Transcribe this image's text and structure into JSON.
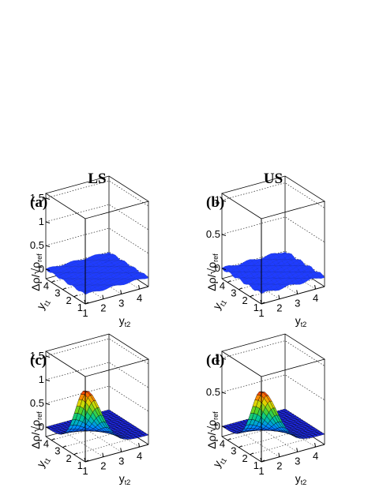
{
  "column_headers": [
    "LS",
    "US"
  ],
  "chart_data": [
    {
      "type": "surface3d",
      "panel_label": "(a)",
      "column": "LS",
      "x_axis": {
        "label": "y",
        "subscript": "t1",
        "range": [
          1,
          4.5
        ],
        "ticks": [
          "1",
          "2",
          "3",
          "4"
        ]
      },
      "y_axis": {
        "label": "y",
        "subscript": "t2",
        "range": [
          1,
          4.5
        ],
        "ticks": [
          "1",
          "2",
          "3",
          "4"
        ]
      },
      "z_axis": {
        "label": "Δρ/√ρ",
        "subscript": "ref",
        "range": [
          -0.2,
          1.6
        ],
        "ticks": [
          "0",
          "0.5",
          "1",
          "1.5"
        ]
      },
      "surface": {
        "shape": "flat",
        "peak_value": 0.0,
        "peak_at": [
          1.0,
          1.0
        ],
        "color": "#1f3cff"
      }
    },
    {
      "type": "surface3d",
      "panel_label": "(b)",
      "column": "US",
      "x_axis": {
        "label": "y",
        "subscript": "t1",
        "range": [
          1,
          4.5
        ],
        "ticks": [
          "1",
          "2",
          "3",
          "4"
        ]
      },
      "y_axis": {
        "label": "y",
        "subscript": "t2",
        "range": [
          1,
          4.5
        ],
        "ticks": [
          "1",
          "2",
          "3",
          "4"
        ]
      },
      "z_axis": {
        "label": "Δρ/√ρ",
        "subscript": "ref",
        "range": [
          -0.15,
          1.1
        ],
        "ticks": [
          "0",
          "0.5",
          "1"
        ]
      },
      "surface": {
        "shape": "flat",
        "peak_value": 0.0,
        "peak_at": [
          1.0,
          1.0
        ],
        "color": "#1f3cff"
      }
    },
    {
      "type": "surface3d",
      "panel_label": "(c)",
      "column": "LS",
      "x_axis": {
        "label": "y",
        "subscript": "t1",
        "range": [
          1,
          4.5
        ],
        "ticks": [
          "1",
          "2",
          "3",
          "4"
        ]
      },
      "y_axis": {
        "label": "y",
        "subscript": "t2",
        "range": [
          1,
          4.5
        ],
        "ticks": [
          "1",
          "2",
          "3",
          "4"
        ]
      },
      "z_axis": {
        "label": "Δρ/√ρ",
        "subscript": "ref",
        "range": [
          -0.2,
          1.6
        ],
        "ticks": [
          "0",
          "0.5",
          "1",
          "1.5"
        ]
      },
      "surface": {
        "shape": "peak",
        "peak_value": 1.3,
        "peak_at": [
          1.0,
          1.0
        ],
        "color_scale": "rainbow"
      }
    },
    {
      "type": "surface3d",
      "panel_label": "(d)",
      "column": "US",
      "x_axis": {
        "label": "y",
        "subscript": "t1",
        "range": [
          1,
          4.5
        ],
        "ticks": [
          "1",
          "2",
          "3",
          "4"
        ]
      },
      "y_axis": {
        "label": "y",
        "subscript": "t2",
        "range": [
          1,
          4.5
        ],
        "ticks": [
          "1",
          "2",
          "3",
          "4"
        ]
      },
      "z_axis": {
        "label": "Δρ/√ρ",
        "subscript": "ref",
        "range": [
          -0.15,
          1.1
        ],
        "ticks": [
          "0",
          "0.5",
          "1"
        ]
      },
      "surface": {
        "shape": "peak",
        "peak_value": 0.88,
        "peak_at": [
          1.0,
          1.0
        ],
        "color_scale": "rainbow"
      }
    }
  ]
}
